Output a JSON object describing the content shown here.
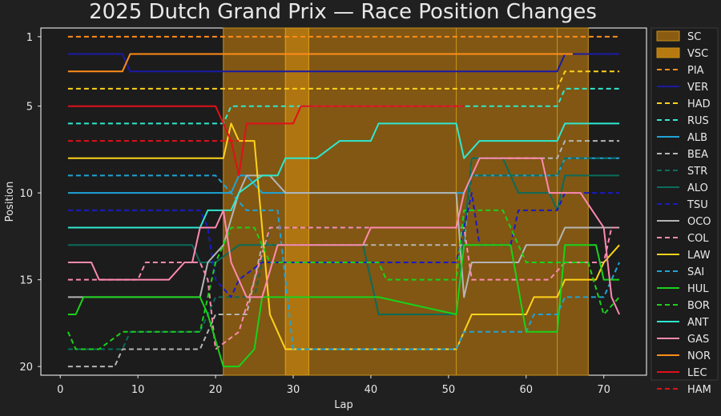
{
  "chart_data": {
    "type": "line",
    "title": "2025 Dutch Grand Prix — Race  Position Changes",
    "xlabel": "Lap",
    "ylabel": "Position",
    "xlim": [
      -2.5,
      75.5
    ],
    "ylim": [
      20.5,
      0.5
    ],
    "x_ticks": [
      0,
      10,
      20,
      30,
      40,
      50,
      60,
      70
    ],
    "y_ticks": [
      1,
      5,
      10,
      15,
      20
    ],
    "colors": {
      "background": "#202020",
      "plot_bg": "#1c1c1c",
      "sc": "#8a5c12",
      "vsc": "#b77a10"
    },
    "sc_periods": [
      [
        21,
        29
      ],
      [
        32,
        51
      ],
      [
        51,
        64
      ],
      [
        64,
        68
      ]
    ],
    "vsc_periods": [
      [
        29,
        32
      ]
    ],
    "legend_position": "right",
    "legend_entries": [
      {
        "name": "SC",
        "kind": "box",
        "color": "#8a5c12"
      },
      {
        "name": "VSC",
        "kind": "box",
        "color": "#b77a10"
      },
      {
        "name": "PIA",
        "kind": "line",
        "color": "#ff8c1a",
        "dash": true
      },
      {
        "name": "VER",
        "kind": "line",
        "color": "#1a1aa6",
        "dash": false
      },
      {
        "name": "HAD",
        "kind": "line",
        "color": "#ffd21a",
        "dash": true
      },
      {
        "name": "RUS",
        "kind": "line",
        "color": "#2ee8d0",
        "dash": true
      },
      {
        "name": "ALB",
        "kind": "line",
        "color": "#1fa3d8",
        "dash": false
      },
      {
        "name": "BEA",
        "kind": "line",
        "color": "#b5b5b5",
        "dash": true
      },
      {
        "name": "STR",
        "kind": "line",
        "color": "#0b6b5a",
        "dash": true
      },
      {
        "name": "ALO",
        "kind": "line",
        "color": "#0b6b5a",
        "dash": false
      },
      {
        "name": "TSU",
        "kind": "line",
        "color": "#1a1ac8",
        "dash": true
      },
      {
        "name": "OCO",
        "kind": "line",
        "color": "#b5b5b5",
        "dash": false
      },
      {
        "name": "COL",
        "kind": "line",
        "color": "#ff8ab0",
        "dash": true
      },
      {
        "name": "LAW",
        "kind": "line",
        "color": "#ffd21a",
        "dash": false
      },
      {
        "name": "SAI",
        "kind": "line",
        "color": "#1fa3d8",
        "dash": true
      },
      {
        "name": "HUL",
        "kind": "line",
        "color": "#1ad21a",
        "dash": false
      },
      {
        "name": "BOR",
        "kind": "line",
        "color": "#1ad21a",
        "dash": true
      },
      {
        "name": "ANT",
        "kind": "line",
        "color": "#2ee8d0",
        "dash": false
      },
      {
        "name": "GAS",
        "kind": "line",
        "color": "#ff8ab0",
        "dash": false
      },
      {
        "name": "NOR",
        "kind": "line",
        "color": "#ff8c1a",
        "dash": false
      },
      {
        "name": "LEC",
        "kind": "line",
        "color": "#e0101a",
        "dash": false
      },
      {
        "name": "HAM",
        "kind": "line",
        "color": "#e0101a",
        "dash": true
      }
    ],
    "series": [
      {
        "name": "PIA",
        "color": "#ff8c1a",
        "dash": true,
        "points": [
          [
            1,
            1
          ],
          [
            72,
            1
          ]
        ]
      },
      {
        "name": "VER",
        "color": "#1a1aa6",
        "dash": false,
        "points": [
          [
            1,
            2
          ],
          [
            8,
            2
          ],
          [
            9,
            3
          ],
          [
            64,
            3
          ],
          [
            65,
            2
          ],
          [
            72,
            2
          ]
        ]
      },
      {
        "name": "HAD",
        "color": "#ffd21a",
        "dash": true,
        "points": [
          [
            1,
            4
          ],
          [
            64,
            4
          ],
          [
            65,
            3
          ],
          [
            72,
            3
          ]
        ]
      },
      {
        "name": "RUS",
        "color": "#2ee8d0",
        "dash": true,
        "points": [
          [
            1,
            6
          ],
          [
            21,
            6
          ],
          [
            22,
            5
          ],
          [
            64,
            5
          ],
          [
            65,
            4
          ],
          [
            72,
            4
          ]
        ]
      },
      {
        "name": "ALB",
        "color": "#1fa3d8",
        "dash": false,
        "points": [
          [
            1,
            10
          ],
          [
            22,
            10
          ],
          [
            23,
            9
          ],
          [
            24,
            9
          ],
          [
            26,
            10
          ],
          [
            52,
            10
          ],
          [
            53,
            9
          ],
          [
            64,
            9
          ],
          [
            65,
            8
          ],
          [
            72,
            8
          ]
        ]
      },
      {
        "name": "BEA",
        "color": "#b5b5b5",
        "dash": true,
        "points": [
          [
            1,
            20
          ],
          [
            7,
            20
          ],
          [
            8,
            19
          ],
          [
            18,
            19
          ],
          [
            20,
            17
          ],
          [
            24,
            17
          ],
          [
            26,
            13
          ],
          [
            52,
            13
          ],
          [
            53,
            8
          ],
          [
            64,
            8
          ],
          [
            65,
            7
          ],
          [
            72,
            7
          ]
        ]
      },
      {
        "name": "STR",
        "color": "#0b6b5a",
        "dash": true,
        "points": [
          [
            1,
            19
          ],
          [
            8,
            19
          ],
          [
            9,
            18
          ],
          [
            18,
            18
          ],
          [
            20,
            16
          ],
          [
            25,
            16
          ],
          [
            27,
            12
          ],
          [
            52,
            12
          ],
          [
            53,
            9
          ],
          [
            64,
            9
          ],
          [
            65,
            8
          ],
          [
            72,
            8
          ]
        ]
      },
      {
        "name": "ALO",
        "color": "#0b6b5a",
        "dash": false,
        "points": [
          [
            1,
            13
          ],
          [
            17,
            13
          ],
          [
            18,
            14
          ],
          [
            20,
            14
          ],
          [
            23,
            13
          ],
          [
            37,
            13
          ],
          [
            39,
            13
          ],
          [
            41,
            17
          ],
          [
            51,
            17
          ],
          [
            53,
            8
          ],
          [
            57,
            8
          ],
          [
            59,
            10
          ],
          [
            63,
            10
          ],
          [
            64,
            11
          ],
          [
            65,
            9
          ],
          [
            72,
            9
          ]
        ]
      },
      {
        "name": "TSU",
        "color": "#1a1ac8",
        "dash": true,
        "points": [
          [
            1,
            11
          ],
          [
            18,
            11
          ],
          [
            19,
            12
          ],
          [
            20,
            15
          ],
          [
            22,
            16
          ],
          [
            23,
            15
          ],
          [
            26,
            14
          ],
          [
            51,
            14
          ],
          [
            53,
            10
          ],
          [
            54,
            13
          ],
          [
            58,
            13
          ],
          [
            59,
            11
          ],
          [
            64,
            11
          ],
          [
            65,
            10
          ],
          [
            72,
            10
          ]
        ]
      },
      {
        "name": "OCO",
        "color": "#b5b5b5",
        "dash": false,
        "points": [
          [
            1,
            16
          ],
          [
            18,
            16
          ],
          [
            19,
            14
          ],
          [
            21,
            13
          ],
          [
            23,
            10
          ],
          [
            24,
            9
          ],
          [
            27,
            9
          ],
          [
            29,
            10
          ],
          [
            51,
            10
          ],
          [
            52,
            16
          ],
          [
            53,
            14
          ],
          [
            59,
            14
          ],
          [
            60,
            13
          ],
          [
            64,
            13
          ],
          [
            65,
            12
          ],
          [
            72,
            12
          ]
        ]
      },
      {
        "name": "COL",
        "color": "#ff8ab0",
        "dash": true,
        "points": [
          [
            1,
            15
          ],
          [
            10,
            15
          ],
          [
            11,
            14
          ],
          [
            18,
            14
          ],
          [
            19,
            15
          ],
          [
            20,
            19
          ],
          [
            23,
            18
          ],
          [
            27,
            12
          ],
          [
            52,
            12
          ],
          [
            53,
            15
          ],
          [
            63,
            15
          ],
          [
            65,
            14
          ],
          [
            70,
            14
          ],
          [
            71,
            12
          ],
          [
            72,
            12
          ]
        ]
      },
      {
        "name": "LAW",
        "color": "#ffd21a",
        "dash": false,
        "points": [
          [
            1,
            8
          ],
          [
            20,
            8
          ],
          [
            21,
            8
          ],
          [
            22,
            6
          ],
          [
            23,
            7
          ],
          [
            25,
            7
          ],
          [
            27,
            17
          ],
          [
            28,
            18
          ],
          [
            29,
            19
          ],
          [
            51,
            19
          ],
          [
            52,
            18
          ],
          [
            53,
            17
          ],
          [
            60,
            17
          ],
          [
            61,
            16
          ],
          [
            64,
            16
          ],
          [
            65,
            15
          ],
          [
            69,
            15
          ],
          [
            70,
            14
          ],
          [
            72,
            13
          ]
        ]
      },
      {
        "name": "SAI",
        "color": "#1fa3d8",
        "dash": true,
        "points": [
          [
            1,
            9
          ],
          [
            20,
            9
          ],
          [
            22,
            10
          ],
          [
            24,
            11
          ],
          [
            28,
            11
          ],
          [
            30,
            19
          ],
          [
            51,
            19
          ],
          [
            52,
            18
          ],
          [
            60,
            18
          ],
          [
            61,
            17
          ],
          [
            64,
            17
          ],
          [
            65,
            16
          ],
          [
            70,
            16
          ],
          [
            72,
            14
          ]
        ]
      },
      {
        "name": "HUL",
        "color": "#1ad21a",
        "dash": false,
        "points": [
          [
            1,
            17
          ],
          [
            2,
            17
          ],
          [
            3,
            16
          ],
          [
            18,
            16
          ],
          [
            19,
            17
          ],
          [
            21,
            20
          ],
          [
            23,
            20
          ],
          [
            25,
            19
          ],
          [
            26,
            16
          ],
          [
            28,
            16
          ],
          [
            40,
            16
          ],
          [
            41,
            16
          ],
          [
            51,
            17
          ],
          [
            52,
            13
          ],
          [
            58,
            13
          ],
          [
            60,
            18
          ],
          [
            64,
            18
          ],
          [
            65,
            13
          ],
          [
            69,
            13
          ],
          [
            70,
            15
          ],
          [
            72,
            15
          ]
        ]
      },
      {
        "name": "BOR",
        "color": "#1ad21a",
        "dash": true,
        "points": [
          [
            1,
            18
          ],
          [
            2,
            19
          ],
          [
            5,
            19
          ],
          [
            8,
            18
          ],
          [
            18,
            18
          ],
          [
            20,
            14
          ],
          [
            22,
            12
          ],
          [
            25,
            12
          ],
          [
            27,
            14
          ],
          [
            41,
            14
          ],
          [
            42,
            15
          ],
          [
            51,
            15
          ],
          [
            52,
            11
          ],
          [
            57,
            11
          ],
          [
            59,
            13
          ],
          [
            60,
            14
          ],
          [
            68,
            14
          ],
          [
            70,
            17
          ],
          [
            72,
            16
          ]
        ]
      },
      {
        "name": "ANT",
        "color": "#2ee8d0",
        "dash": false,
        "points": [
          [
            1,
            12
          ],
          [
            18,
            12
          ],
          [
            19,
            11
          ],
          [
            22,
            11
          ],
          [
            23,
            10
          ],
          [
            26,
            9
          ],
          [
            28,
            9
          ],
          [
            29,
            8
          ],
          [
            33,
            8
          ],
          [
            36,
            7
          ],
          [
            40,
            7
          ],
          [
            41,
            6
          ],
          [
            51,
            6
          ],
          [
            52,
            8
          ],
          [
            54,
            7
          ],
          [
            64,
            7
          ],
          [
            65,
            6
          ],
          [
            72,
            6
          ]
        ]
      },
      {
        "name": "GAS",
        "color": "#ff8ab0",
        "dash": false,
        "points": [
          [
            1,
            14
          ],
          [
            4,
            14
          ],
          [
            5,
            15
          ],
          [
            14,
            15
          ],
          [
            16,
            14
          ],
          [
            17,
            14
          ],
          [
            18,
            12
          ],
          [
            20,
            12
          ],
          [
            21,
            11
          ],
          [
            22,
            14
          ],
          [
            24,
            16
          ],
          [
            26,
            16
          ],
          [
            28,
            13
          ],
          [
            39,
            13
          ],
          [
            40,
            12
          ],
          [
            51,
            12
          ],
          [
            52,
            10
          ],
          [
            54,
            8
          ],
          [
            62,
            8
          ],
          [
            63,
            10
          ],
          [
            67,
            10
          ],
          [
            70,
            12
          ],
          [
            71,
            16
          ],
          [
            72,
            17
          ]
        ]
      },
      {
        "name": "NOR",
        "color": "#ff8c1a",
        "dash": false,
        "points": [
          [
            1,
            3
          ],
          [
            8,
            3
          ],
          [
            9,
            2
          ],
          [
            64,
            2
          ],
          [
            65,
            2
          ],
          [
            66,
            2
          ]
        ]
      },
      {
        "name": "LEC",
        "color": "#e0101a",
        "dash": false,
        "points": [
          [
            1,
            5
          ],
          [
            20,
            5
          ],
          [
            22,
            7
          ],
          [
            23,
            9
          ],
          [
            24,
            6
          ],
          [
            30,
            6
          ],
          [
            31,
            5
          ],
          [
            52,
            5
          ]
        ]
      },
      {
        "name": "HAM",
        "color": "#e0101a",
        "dash": true,
        "points": [
          [
            1,
            7
          ],
          [
            23,
            7
          ]
        ]
      }
    ]
  }
}
